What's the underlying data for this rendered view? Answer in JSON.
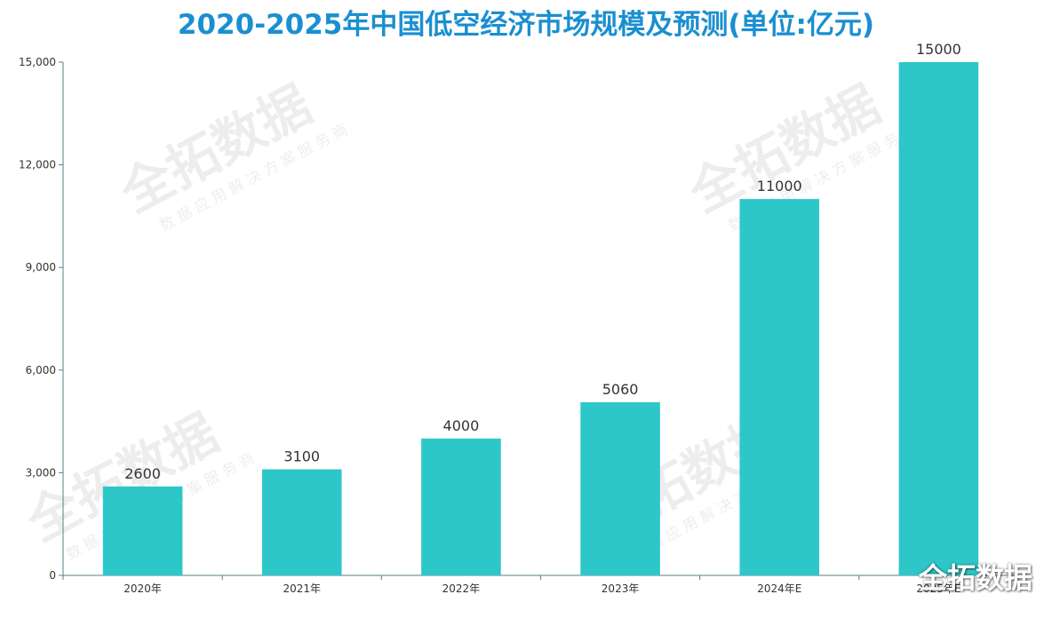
{
  "chart_data": {
    "type": "bar",
    "title": "2020-2025年中国低空经济市场规模及预测(单位:亿元)",
    "categories": [
      "2020年",
      "2021年",
      "2022年",
      "2023年",
      "2024年E",
      "2025年E"
    ],
    "values": [
      2600,
      3100,
      4000,
      5060,
      11000,
      15000
    ],
    "data_labels": [
      "2600",
      "3100",
      "4000",
      "5060",
      "11000",
      "15000"
    ],
    "ylim": [
      0,
      15000
    ],
    "yticks": [
      0,
      3000,
      6000,
      9000,
      12000,
      15000
    ],
    "ytick_labels": [
      "0",
      "3,000",
      "6,000",
      "9,000",
      "12,000",
      "15,000"
    ],
    "xlabel": "",
    "ylabel": "",
    "grid": false,
    "bar_color": "#2ec7c9",
    "title_color": "#1a8fd0"
  },
  "watermark": {
    "brand": "全拓数据",
    "tagline": "数据应用解决方案服务商"
  }
}
